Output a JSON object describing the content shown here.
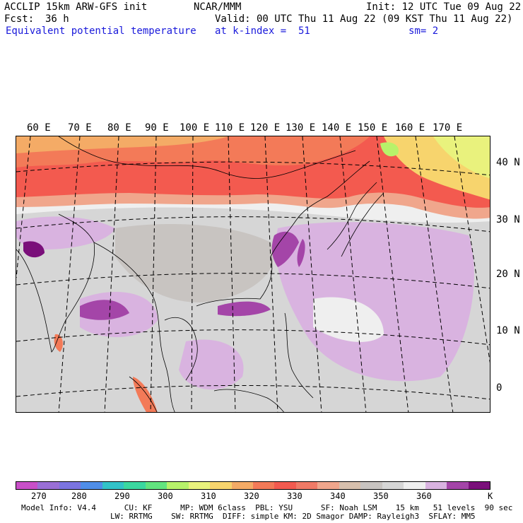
{
  "header": {
    "line1_left": "ACCLIP 15km ARW-GFS init",
    "line1_mid": "NCAR/MMM",
    "line1_right": "Init: 12 UTC Tue 09 Aug 22",
    "fcst_label": "Fcst:",
    "fcst_value": "36 h",
    "valid": "Valid: 00 UTC Thu 11 Aug 22 (09 KST Thu 11 Aug 22)",
    "field": "Equivalent potential temperature",
    "level": "at k-index =  51",
    "smooth": "sm= 2"
  },
  "map": {
    "lon_labels": [
      "60 E",
      "70 E",
      "80 E",
      "90 E",
      "100 E",
      "110 E",
      "120 E",
      "130 E",
      "140 E",
      "150 E",
      "160 E",
      "170 E"
    ],
    "lat_labels": [
      "40 N",
      "30 N",
      "20 N",
      "10 N",
      "0"
    ]
  },
  "legend": {
    "colors": [
      "#c94fc8",
      "#9a6fd6",
      "#7b74e0",
      "#4f8ee8",
      "#32c3c8",
      "#3bd8a0",
      "#62e47f",
      "#b7f26a",
      "#e9f27d",
      "#f7d46d",
      "#f4ab66",
      "#f37a58",
      "#f35a4f",
      "#f07a66",
      "#f0a68c",
      "#d7c0ad",
      "#c8c4c1",
      "#d6d6d6",
      "#efefef",
      "#d9b3e0",
      "#a445a8",
      "#7a0f7a"
    ],
    "tick_labels": [
      "270",
      "280",
      "290",
      "300",
      "310",
      "320",
      "330",
      "340",
      "350",
      "360",
      "K"
    ]
  },
  "footer": {
    "line1": "Model Info: V4.4      CU: KF      MP: WDM 6class  PBL: YSU      SF: Noah LSM    15 km   51 levels  90 sec",
    "line2": "LW: RRTMG    SW: RRTMG  DIFF: simple KM: 2D Smagor DAMP: Rayleigh3  SFLAY: MM5"
  }
}
